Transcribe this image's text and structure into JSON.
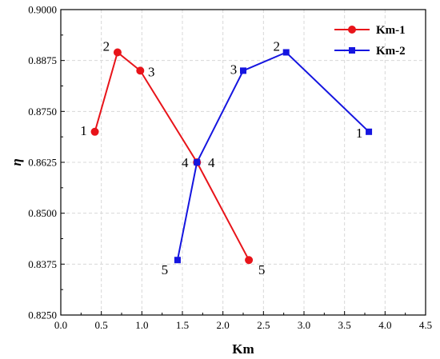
{
  "chart_data": {
    "type": "line",
    "title": "",
    "xlabel": "Km",
    "ylabel": "η",
    "xlim": [
      0.0,
      4.5
    ],
    "ylim": [
      0.825,
      0.9
    ],
    "xticks": [
      "0.0",
      "0.5",
      "1.0",
      "1.5",
      "2.0",
      "2.5",
      "3.0",
      "3.5",
      "4.0",
      "4.5"
    ],
    "yticks": [
      "0.8250",
      "0.8375",
      "0.8500",
      "0.8625",
      "0.8750",
      "0.8875",
      "0.9000"
    ],
    "grid": true,
    "legend_position": "top-right",
    "series": [
      {
        "name": "Km-1",
        "color": "#e8141a",
        "marker": "circle",
        "points": [
          {
            "x": 0.42,
            "y": 0.87,
            "label": "1"
          },
          {
            "x": 0.7,
            "y": 0.8895,
            "label": "2"
          },
          {
            "x": 0.98,
            "y": 0.885,
            "label": "3"
          },
          {
            "x": 1.68,
            "y": 0.8625,
            "label": "4"
          },
          {
            "x": 2.32,
            "y": 0.8385,
            "label": "5"
          }
        ]
      },
      {
        "name": "Km-2",
        "color": "#1515e0",
        "marker": "square",
        "points": [
          {
            "x": 3.8,
            "y": 0.87,
            "label": "1"
          },
          {
            "x": 2.78,
            "y": 0.8895,
            "label": "2"
          },
          {
            "x": 2.25,
            "y": 0.885,
            "label": "3"
          },
          {
            "x": 1.68,
            "y": 0.8625,
            "label": "4"
          },
          {
            "x": 1.44,
            "y": 0.8385,
            "label": "5"
          }
        ]
      }
    ]
  }
}
